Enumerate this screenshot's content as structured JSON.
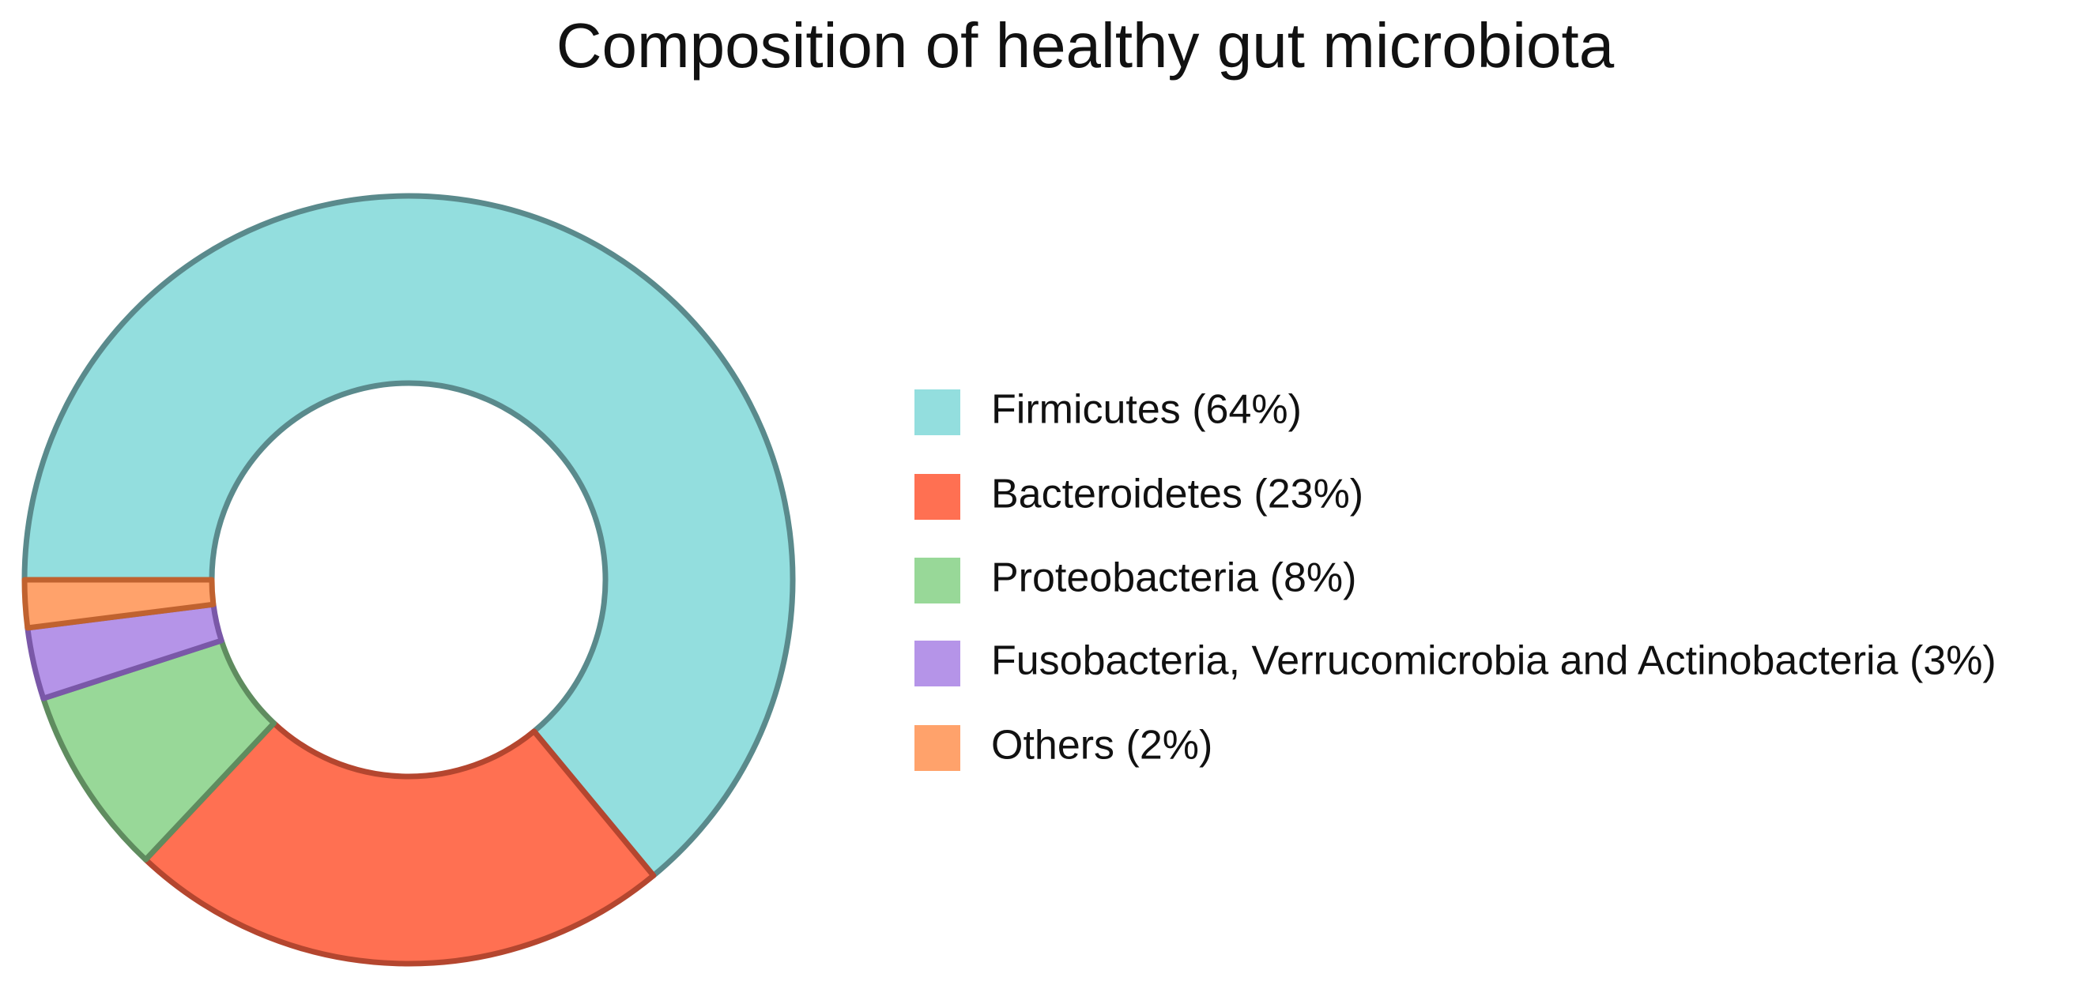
{
  "chart_data": {
    "type": "donut",
    "title": "Composition of healthy gut microbiota",
    "categories": [
      "Firmicutes (64%)",
      "Bacteroidetes (23%)",
      "Proteobacteria (8%)",
      "Fusobacteria, Verrucomicrobia and Actinobacteria (3%)",
      "Others (2%)"
    ],
    "values": [
      64,
      23,
      8,
      3,
      2
    ],
    "colors": [
      "#93dede",
      "#ff7052",
      "#98d898",
      "#b594e8",
      "#ffa26b"
    ],
    "edge_colors": [
      "#5a8a8c",
      "#b4462f",
      "#5f8c5f",
      "#7a58a8",
      "#c0622f"
    ],
    "legend": "right"
  }
}
